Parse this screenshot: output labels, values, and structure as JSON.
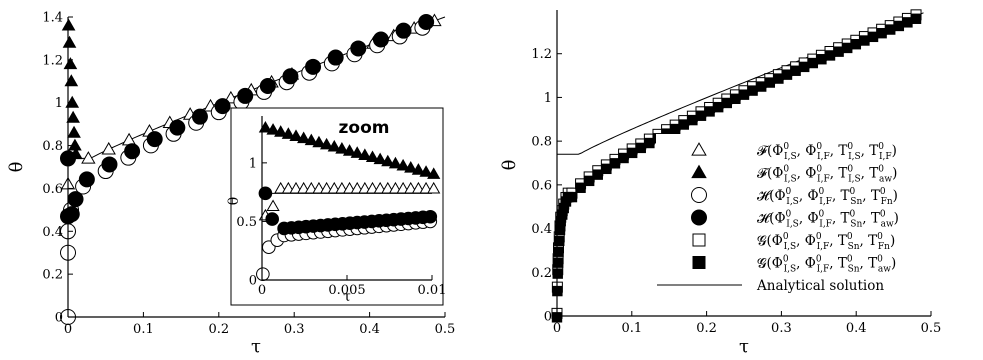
{
  "chart_data": [
    {
      "type": "scatter",
      "panel": "left",
      "xlabel": "τ",
      "ylabel": "θ",
      "xlim": [
        0,
        0.5
      ],
      "ylim": [
        0,
        1.4
      ],
      "xticks": [
        "0",
        "0.1",
        "0.2",
        "0.3",
        "0.4",
        "0.5"
      ],
      "yticks": [
        "0",
        "0.2",
        "0.4",
        "0.6",
        "0.8",
        "1",
        "1.2",
        "1.4"
      ],
      "inset": {
        "label": "zoom",
        "xlabel": "τ",
        "ylabel": "θ",
        "xlim": [
          0,
          0.01
        ],
        "ylim": [
          0,
          1.4
        ],
        "xticks": [
          "0",
          "0.005",
          "0.01"
        ],
        "yticks": [
          "0",
          "0.5",
          "1"
        ]
      }
    },
    {
      "type": "scatter",
      "panel": "right",
      "xlabel": "τ",
      "ylabel": "θ",
      "xlim": [
        0,
        0.5
      ],
      "ylim": [
        0,
        1.4
      ],
      "xticks": [
        "0",
        "0.1",
        "0.2",
        "0.3",
        "0.4",
        "0.5"
      ],
      "yticks": [
        "0",
        "0.2",
        "0.4",
        "0.6",
        "0.8",
        "1",
        "1.2"
      ],
      "legend": {
        "placement": "lower-right",
        "entries": [
          {
            "marker": "triangle-open",
            "func": "𝓕",
            "args": [
              [
                "Φ",
                "0",
                "I,S"
              ],
              [
                "Φ",
                "0",
                "I,F"
              ],
              [
                "T",
                "0",
                "I,S"
              ],
              [
                "T",
                "0",
                "I,F"
              ]
            ]
          },
          {
            "marker": "triangle-filled",
            "func": "𝓕",
            "args": [
              [
                "Φ",
                "0",
                "I,S"
              ],
              [
                "Φ",
                "0",
                "I,F"
              ],
              [
                "T",
                "0",
                "I,S"
              ],
              [
                "T",
                "0",
                "aw"
              ]
            ]
          },
          {
            "marker": "circle-open",
            "func": "𝓗",
            "args": [
              [
                "Φ",
                "0",
                "I,S"
              ],
              [
                "Φ",
                "0",
                "I,F"
              ],
              [
                "T",
                "0",
                "Sn"
              ],
              [
                "T",
                "0",
                "Fn"
              ]
            ]
          },
          {
            "marker": "circle-filled",
            "func": "𝓗",
            "args": [
              [
                "Φ",
                "0",
                "I,S"
              ],
              [
                "Φ",
                "0",
                "I,F"
              ],
              [
                "T",
                "0",
                "Sn"
              ],
              [
                "T",
                "0",
                "aw"
              ]
            ]
          },
          {
            "marker": "square-open",
            "func": "𝓖",
            "args": [
              [
                "Φ",
                "0",
                "I,S"
              ],
              [
                "Φ",
                "0",
                "I,F"
              ],
              [
                "T",
                "0",
                "Sn"
              ],
              [
                "T",
                "0",
                "Fn"
              ]
            ]
          },
          {
            "marker": "square-filled",
            "func": "𝓖",
            "args": [
              [
                "Φ",
                "0",
                "I,S"
              ],
              [
                "Φ",
                "0",
                "I,F"
              ],
              [
                "T",
                "0",
                "Sn"
              ],
              [
                "T",
                "0",
                "aw"
              ]
            ]
          },
          {
            "marker": "line",
            "label": "Analytical solution"
          }
        ]
      }
    }
  ]
}
